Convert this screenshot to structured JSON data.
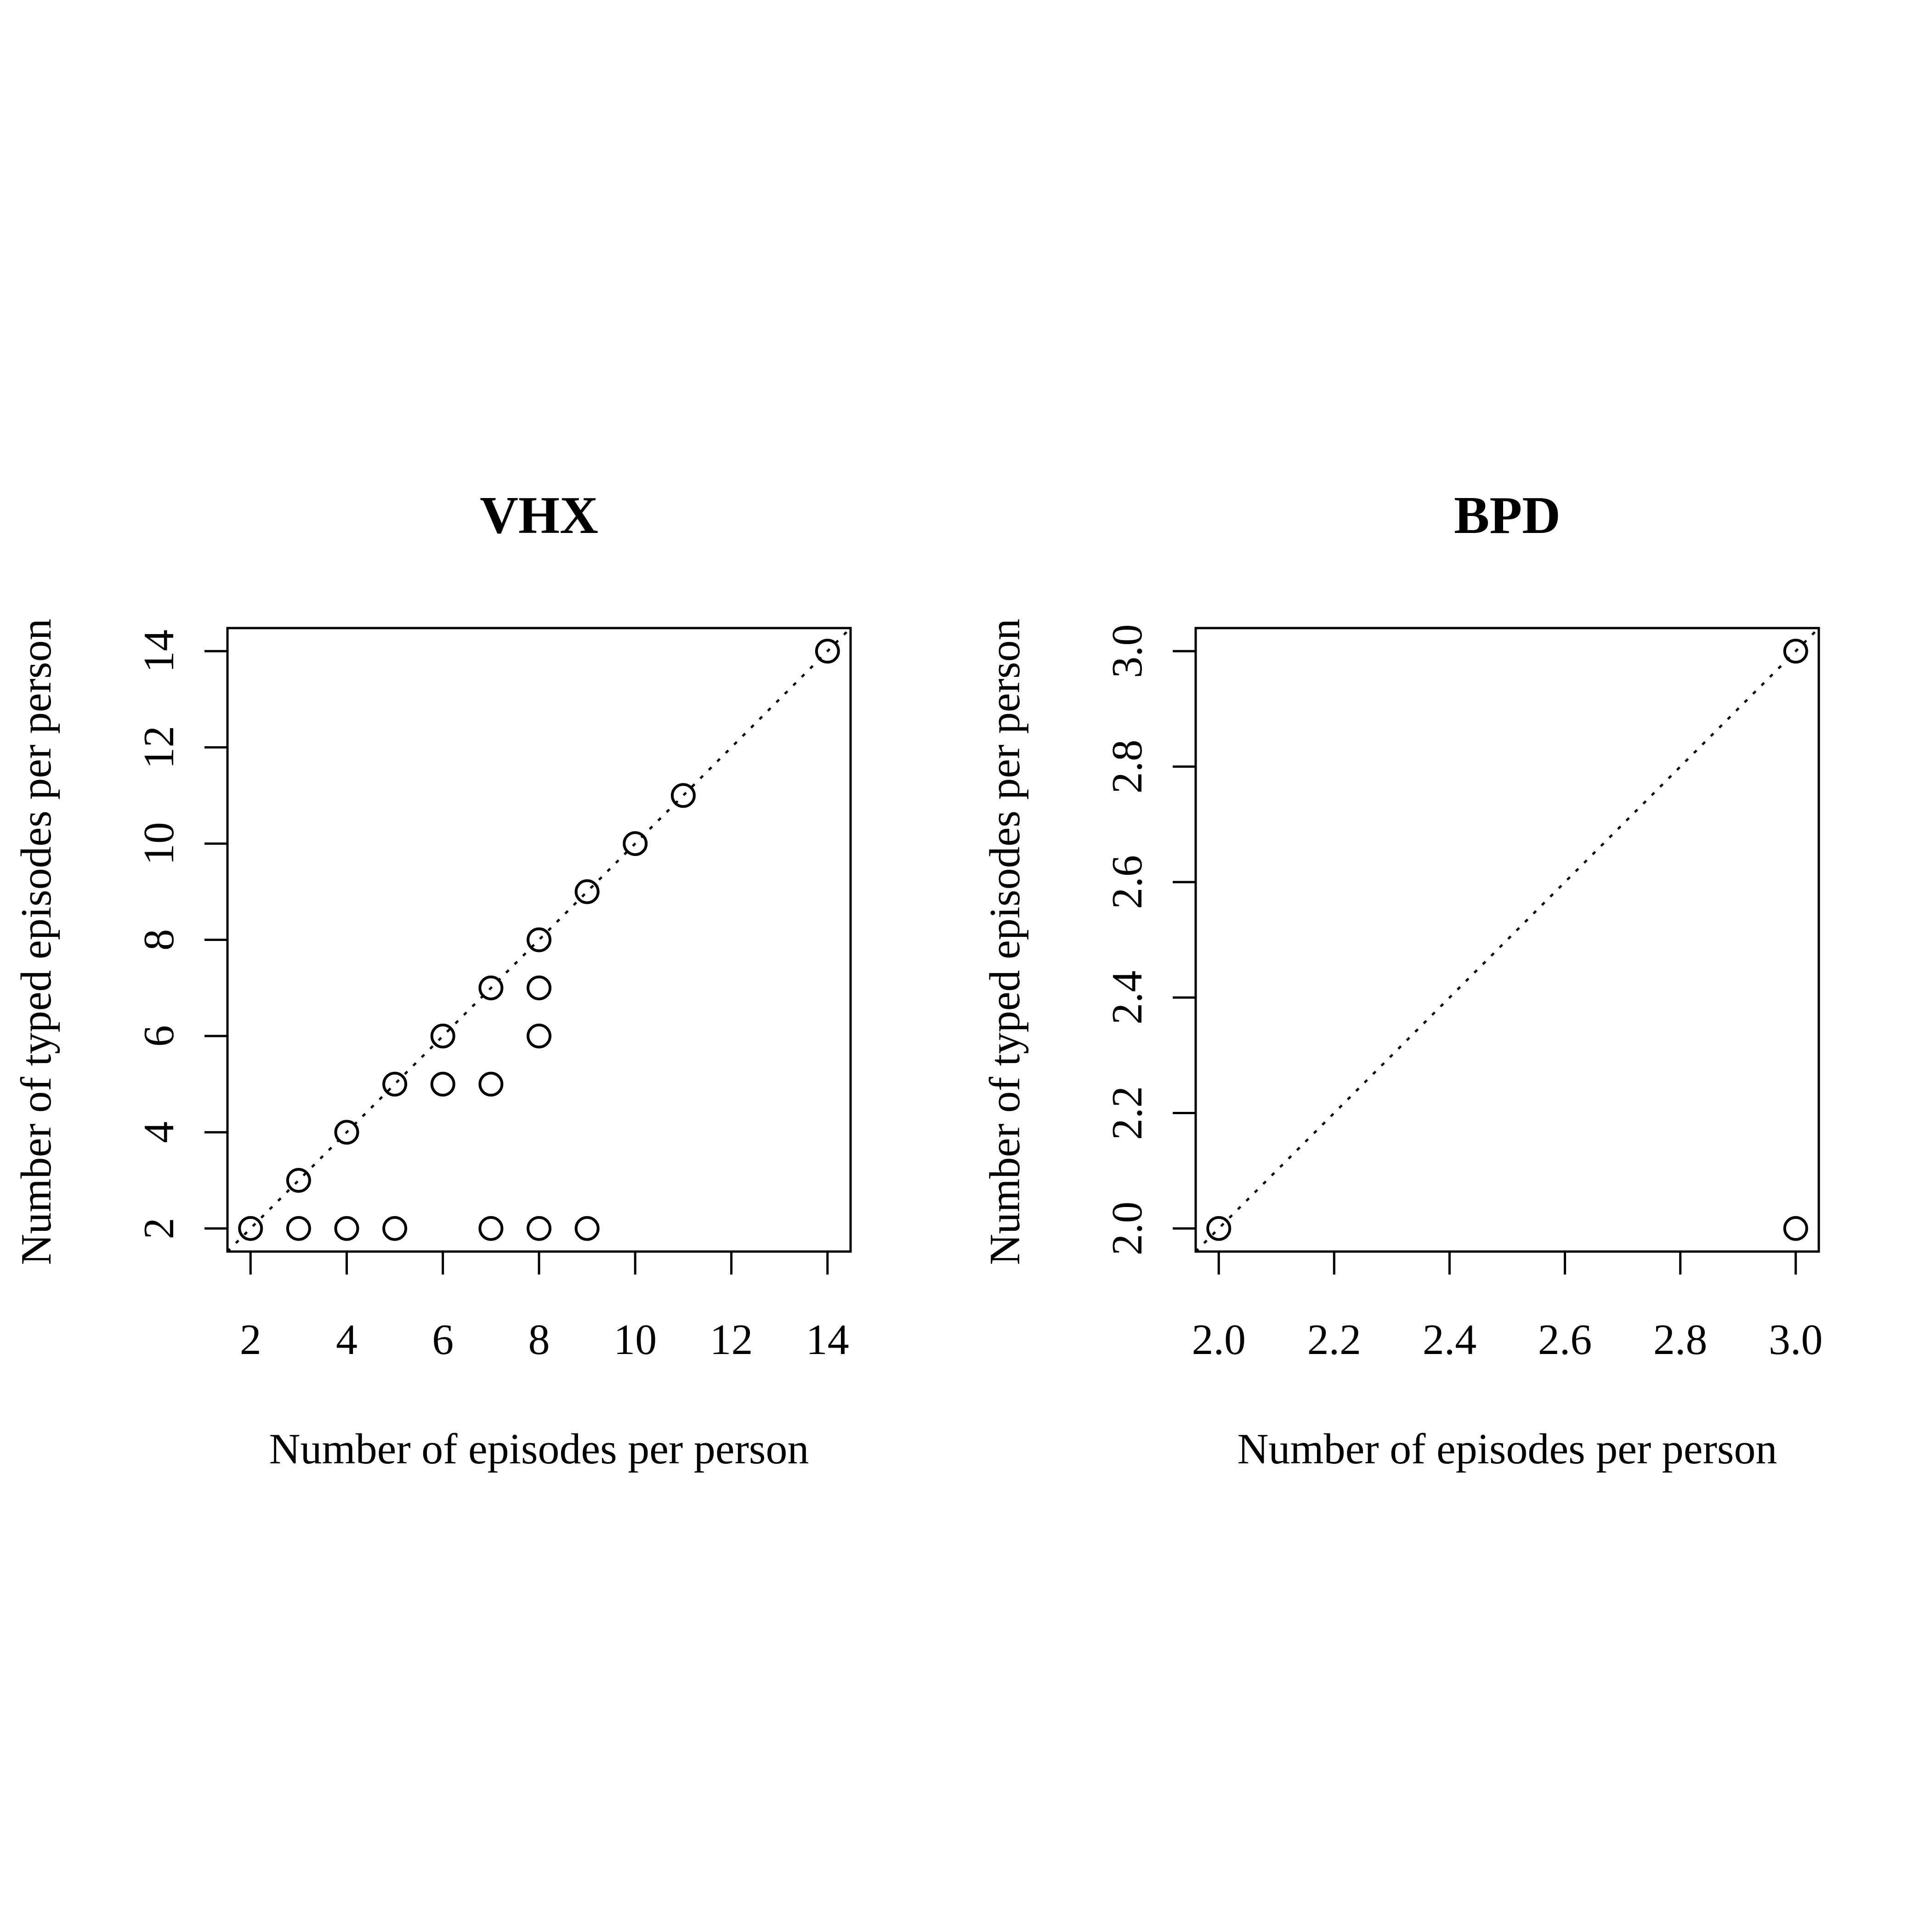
{
  "chart_data": [
    {
      "type": "scatter",
      "title": "VHX",
      "xlabel": "Number of episodes per person",
      "ylabel": "Number of typed episodes per person",
      "xlim": [
        1.52,
        14.48
      ],
      "ylim": [
        1.52,
        14.48
      ],
      "xticks": [
        "2",
        "4",
        "6",
        "8",
        "10",
        "12",
        "14"
      ],
      "yticks": [
        "2",
        "4",
        "6",
        "8",
        "10",
        "12",
        "14"
      ],
      "xtick_values": [
        2,
        4,
        6,
        8,
        10,
        12,
        14
      ],
      "ytick_values": [
        2,
        4,
        6,
        8,
        10,
        12,
        14
      ],
      "grid": false,
      "reference_line": "y = x (dotted)",
      "points": [
        {
          "x": 2,
          "y": 2
        },
        {
          "x": 3,
          "y": 3
        },
        {
          "x": 4,
          "y": 4
        },
        {
          "x": 5,
          "y": 5
        },
        {
          "x": 6,
          "y": 6
        },
        {
          "x": 7,
          "y": 7
        },
        {
          "x": 8,
          "y": 8
        },
        {
          "x": 9,
          "y": 9
        },
        {
          "x": 10,
          "y": 10
        },
        {
          "x": 11,
          "y": 11
        },
        {
          "x": 14,
          "y": 14
        },
        {
          "x": 8,
          "y": 7
        },
        {
          "x": 8,
          "y": 6
        },
        {
          "x": 6,
          "y": 5
        },
        {
          "x": 7,
          "y": 5
        },
        {
          "x": 3,
          "y": 2
        },
        {
          "x": 4,
          "y": 2
        },
        {
          "x": 5,
          "y": 2
        },
        {
          "x": 7,
          "y": 2
        },
        {
          "x": 8,
          "y": 2
        },
        {
          "x": 9,
          "y": 2
        }
      ]
    },
    {
      "type": "scatter",
      "title": "BPD",
      "xlabel": "Number of episodes per person",
      "ylabel": "Number of typed episodes per person",
      "xlim": [
        1.96,
        3.04
      ],
      "ylim": [
        1.96,
        3.04
      ],
      "xticks": [
        "2.0",
        "2.2",
        "2.4",
        "2.6",
        "2.8",
        "3.0"
      ],
      "yticks": [
        "2.0",
        "2.2",
        "2.4",
        "2.6",
        "2.8",
        "3.0"
      ],
      "xtick_values": [
        2.0,
        2.2,
        2.4,
        2.6,
        2.8,
        3.0
      ],
      "ytick_values": [
        2.0,
        2.2,
        2.4,
        2.6,
        2.8,
        3.0
      ],
      "grid": false,
      "reference_line": "y = x (dotted)",
      "points": [
        {
          "x": 2,
          "y": 2
        },
        {
          "x": 3,
          "y": 3
        },
        {
          "x": 3,
          "y": 2
        }
      ]
    }
  ]
}
